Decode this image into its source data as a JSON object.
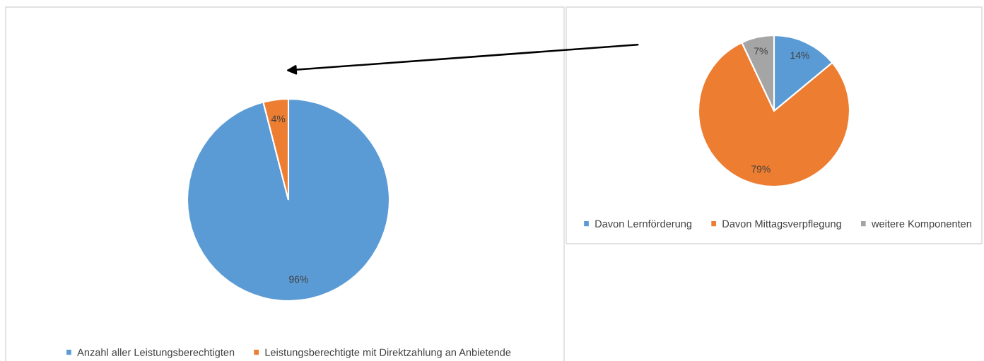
{
  "chart_data": [
    {
      "type": "pie",
      "categories": [
        "Anzahl aller Leistungsberechtigten",
        "Leistungsberechtigte mit Direktzahlung an Anbietende"
      ],
      "values": [
        96,
        4
      ],
      "colors": [
        "#5b9bd5",
        "#ed7d31"
      ],
      "value_labels": [
        "96%",
        "4%"
      ],
      "legend": "bottom"
    },
    {
      "type": "pie",
      "categories": [
        "Davon Lernförderung",
        "Davon Mittagsverpflegung",
        "weitere Komponenten"
      ],
      "values": [
        14,
        79,
        7
      ],
      "colors": [
        "#5b9bd5",
        "#ed7d31",
        "#a5a5a5"
      ],
      "value_labels": [
        "14%",
        "79%",
        "7%"
      ],
      "legend": "bottom"
    }
  ]
}
